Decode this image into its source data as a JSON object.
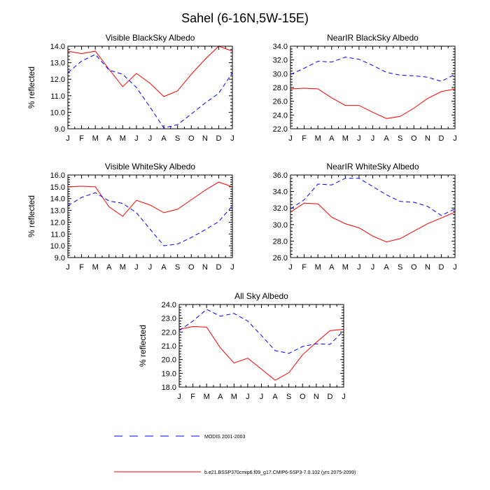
{
  "title": "Sahel (6-16N,5W-15E)",
  "colors": {
    "model": "#ff0000",
    "modis": "#0000ff"
  },
  "chart_data": [
    {
      "type": "line",
      "title": "Visible BlackSky Albedo",
      "ylabel": "% reflected",
      "xlabel": "",
      "categories": [
        "J",
        "F",
        "M",
        "A",
        "M",
        "J",
        "J",
        "A",
        "S",
        "O",
        "N",
        "D",
        "J"
      ],
      "ylim": [
        9.0,
        14.0
      ],
      "yticks": [
        "9.0",
        "10.0",
        "11.0",
        "12.0",
        "13.0",
        "14.0"
      ],
      "series": [
        {
          "name": "b.e21.BSSP370cmip6.f09_g17.CMIP6-SSP3-7.0.102 (yrs 2075-2099)",
          "style": "solid",
          "values": [
            13.7,
            13.55,
            13.7,
            12.6,
            11.55,
            12.35,
            11.75,
            10.95,
            11.3,
            12.3,
            13.2,
            14.0,
            13.7
          ]
        },
        {
          "name": "MODIS 2001-2003",
          "style": "dashed",
          "values": [
            12.4,
            13.1,
            13.5,
            12.55,
            12.3,
            11.5,
            10.3,
            9.05,
            9.25,
            9.9,
            10.55,
            11.15,
            12.4
          ]
        }
      ]
    },
    {
      "type": "line",
      "title": "NearIR BlackSky Albedo",
      "ylabel": "",
      "xlabel": "",
      "categories": [
        "J",
        "F",
        "M",
        "A",
        "M",
        "J",
        "J",
        "A",
        "S",
        "O",
        "N",
        "D",
        "J"
      ],
      "ylim": [
        22.0,
        34.0
      ],
      "yticks": [
        "22.0",
        "24.0",
        "26.0",
        "28.0",
        "30.0",
        "32.0",
        "34.0"
      ],
      "series": [
        {
          "name": "b.e21.BSSP370cmip6.f09_g17.CMIP6-SSP3-7.0.102 (yrs 2075-2099)",
          "style": "solid",
          "values": [
            27.8,
            27.9,
            27.8,
            26.5,
            25.4,
            25.4,
            24.4,
            23.5,
            23.8,
            25.0,
            26.4,
            27.4,
            27.8
          ]
        },
        {
          "name": "MODIS 2001-2003",
          "style": "dashed",
          "values": [
            29.9,
            30.8,
            31.8,
            31.7,
            32.4,
            32.1,
            31.2,
            30.2,
            29.8,
            29.7,
            29.5,
            28.9,
            29.9
          ]
        }
      ]
    },
    {
      "type": "line",
      "title": "Visible WhiteSky Albedo",
      "ylabel": "% reflected",
      "xlabel": "",
      "categories": [
        "J",
        "F",
        "M",
        "A",
        "M",
        "J",
        "J",
        "A",
        "S",
        "O",
        "N",
        "D",
        "J"
      ],
      "ylim": [
        9.0,
        16.0
      ],
      "yticks": [
        "9.0",
        "10.0",
        "11.0",
        "12.0",
        "13.0",
        "14.0",
        "15.0",
        "16.0"
      ],
      "series": [
        {
          "name": "b.e21.BSSP370cmip6.f09_g17.CMIP6-SSP3-7.0.102 (yrs 2075-2099)",
          "style": "solid",
          "values": [
            15.0,
            15.05,
            15.0,
            13.3,
            12.5,
            13.85,
            13.45,
            12.8,
            13.1,
            13.9,
            14.7,
            15.4,
            15.0
          ]
        },
        {
          "name": "MODIS 2001-2003",
          "style": "dashed",
          "values": [
            13.4,
            14.1,
            14.5,
            13.8,
            13.6,
            12.8,
            11.4,
            10.0,
            10.15,
            10.7,
            11.35,
            12.05,
            13.4
          ]
        }
      ]
    },
    {
      "type": "line",
      "title": "NearIR WhiteSky Albedo",
      "ylabel": "",
      "xlabel": "",
      "categories": [
        "J",
        "F",
        "M",
        "A",
        "M",
        "J",
        "J",
        "A",
        "S",
        "O",
        "N",
        "D",
        "J"
      ],
      "ylim": [
        26.0,
        36.0
      ],
      "yticks": [
        "26.0",
        "28.0",
        "30.0",
        "32.0",
        "34.0",
        "36.0"
      ],
      "series": [
        {
          "name": "b.e21.BSSP370cmip6.f09_g17.CMIP6-SSP3-7.0.102 (yrs 2075-2099)",
          "style": "solid",
          "values": [
            31.5,
            32.6,
            32.5,
            30.9,
            30.1,
            29.6,
            28.6,
            27.9,
            28.3,
            29.2,
            30.1,
            30.8,
            31.5
          ]
        },
        {
          "name": "MODIS 2001-2003",
          "style": "dashed",
          "values": [
            31.9,
            33.0,
            34.9,
            34.8,
            35.6,
            35.6,
            34.6,
            33.6,
            32.8,
            32.7,
            32.2,
            31.1,
            31.9
          ]
        }
      ]
    },
    {
      "type": "line",
      "title": "All Sky Albedo",
      "ylabel": "% reflected",
      "xlabel": "",
      "categories": [
        "J",
        "F",
        "M",
        "A",
        "M",
        "J",
        "J",
        "A",
        "S",
        "O",
        "N",
        "D",
        "J"
      ],
      "ylim": [
        18.0,
        24.0
      ],
      "yticks": [
        "18.0",
        "19.0",
        "20.0",
        "21.0",
        "22.0",
        "23.0",
        "24.0"
      ],
      "series": [
        {
          "name": "b.e21.BSSP370cmip6.f09_g17.CMIP6-SSP3-7.0.102 (yrs 2075-2099)",
          "style": "solid",
          "values": [
            22.2,
            22.4,
            22.35,
            20.85,
            19.75,
            20.1,
            19.3,
            18.5,
            19.05,
            20.35,
            21.25,
            22.1,
            22.2
          ]
        },
        {
          "name": "MODIS 2001-2003",
          "style": "dashed",
          "values": [
            22.1,
            22.8,
            23.65,
            23.15,
            23.35,
            22.8,
            21.75,
            20.65,
            20.45,
            20.95,
            21.15,
            21.1,
            22.1
          ]
        }
      ]
    }
  ],
  "legend": [
    {
      "label": "MODIS 2001-2003",
      "style": "dashed",
      "color": "#0000ff"
    },
    {
      "label": "b.e21.BSSP370cmip6.f09_g17.CMIP6-SSP3-7.0.102 (yrs 2075-2099)",
      "style": "solid",
      "color": "#ff0000"
    }
  ]
}
